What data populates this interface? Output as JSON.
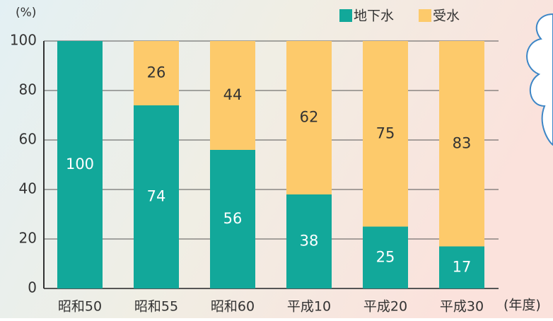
{
  "chart_data": {
    "type": "stacked_bar",
    "y_label": "(%)",
    "x_label": "(年度)",
    "categories": [
      "昭和50",
      "昭和55",
      "昭和60",
      "平成10",
      "平成20",
      "平成30"
    ],
    "series": [
      {
        "name": "地下水",
        "color": "#12a89a",
        "label_color": "#ffffff",
        "values": [
          100,
          74,
          56,
          38,
          25,
          17
        ]
      },
      {
        "name": "受水",
        "color": "#fdca6b",
        "label_color": "#333333",
        "values": [
          null,
          26,
          44,
          62,
          75,
          83
        ]
      }
    ],
    "ylim": [
      0,
      100
    ],
    "yticks": [
      0,
      20,
      40,
      60,
      80,
      100
    ],
    "grid": true
  }
}
